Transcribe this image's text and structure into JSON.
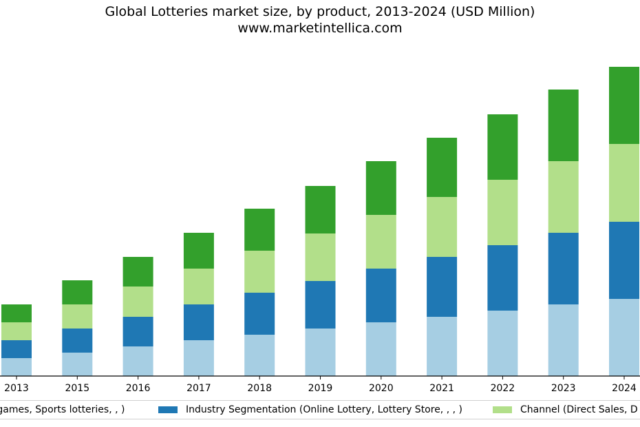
{
  "chart_data": {
    "type": "bar",
    "stacked": true,
    "title": "Global Lotteries market size, by product, 2013-2024 (USD Million)",
    "subtitle": "www.marketintellica.com",
    "categories": [
      "2013",
      "2015",
      "2016",
      "2017",
      "2018",
      "2019",
      "2020",
      "2021",
      "2022",
      "2023",
      "2024"
    ],
    "series": [
      {
        "name": "Type of games, Sports lotteries, , )",
        "label_shown": "f games, Sports lotteries, , )",
        "color": "#a6cee3",
        "values": [
          26,
          34,
          43,
          52,
          60,
          69,
          78,
          86,
          95,
          104,
          112
        ]
      },
      {
        "name": "Industry Segmentation (Online Lottery, Lottery Store, , , )",
        "color": "#1f78b4",
        "values": [
          26,
          35,
          43,
          52,
          61,
          69,
          78,
          87,
          95,
          104,
          112
        ]
      },
      {
        "name": "Channel (Direct Sales, D",
        "color": "#b2df8a",
        "values": [
          26,
          35,
          44,
          52,
          61,
          69,
          78,
          87,
          95,
          104,
          113
        ]
      },
      {
        "name": "",
        "color": "#33a02c",
        "values": [
          26,
          35,
          43,
          52,
          61,
          69,
          78,
          86,
          95,
          104,
          112
        ]
      }
    ],
    "ylim": [
      0,
      450
    ],
    "xlabel": "",
    "ylabel": "",
    "grid": false,
    "legend": "bottom"
  }
}
